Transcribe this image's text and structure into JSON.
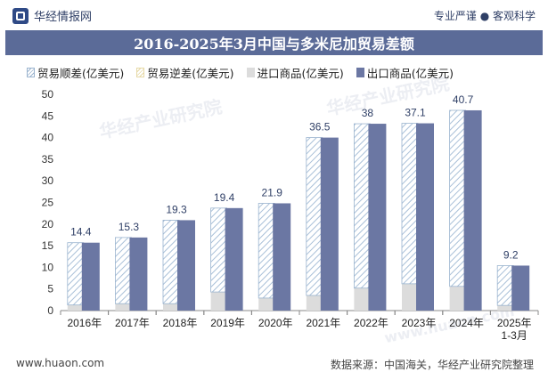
{
  "header": {
    "brand": "华经情报网",
    "tags": "专业严谨 ● 客观科学"
  },
  "footer": {
    "url": "www.huaon.com",
    "source": "数据来源：中国海关，华经产业研究院整理"
  },
  "watermark": {
    "text": "华经产业研究院",
    "url": "www.huaon.com"
  },
  "colors": {
    "surplus_hatch": "#9bb4cf",
    "deficit_hatch": "#e6d9a6",
    "import": "#dcdcdc",
    "export": "#6b77a3",
    "title_bg": "#5b6b98"
  },
  "chart_data": {
    "type": "bar",
    "title": "2016-2025年3月中国与多米尼加贸易差额",
    "categories": [
      "2016年",
      "2017年",
      "2018年",
      "2019年",
      "2020年",
      "2021年",
      "2022年",
      "2023年",
      "2024年",
      "2025年\n1-3月"
    ],
    "series": [
      {
        "name": "贸易顺差(亿美元)",
        "values": [
          14.4,
          15.3,
          19.3,
          19.4,
          21.9,
          36.5,
          38,
          37.1,
          40.7,
          9.2
        ]
      },
      {
        "name": "贸易逆差(亿美元)",
        "values": [
          0,
          0,
          0,
          0,
          0,
          0,
          0,
          0,
          0,
          0
        ]
      },
      {
        "name": "进口商品(亿美元)",
        "values": [
          1.3,
          1.6,
          1.6,
          4.3,
          2.9,
          3.5,
          5.2,
          6.2,
          5.6,
          1.2
        ]
      },
      {
        "name": "出口商品(亿美元)",
        "values": [
          15.7,
          16.9,
          20.9,
          23.7,
          24.8,
          40.0,
          43.2,
          43.3,
          46.3,
          10.4
        ]
      }
    ],
    "ylim": [
      0,
      50
    ],
    "yticks": [
      0,
      5,
      10,
      15,
      20,
      25,
      30,
      35,
      40,
      45,
      50
    ],
    "legend_position": "top",
    "grid": false,
    "xlabel": "",
    "ylabel": ""
  }
}
